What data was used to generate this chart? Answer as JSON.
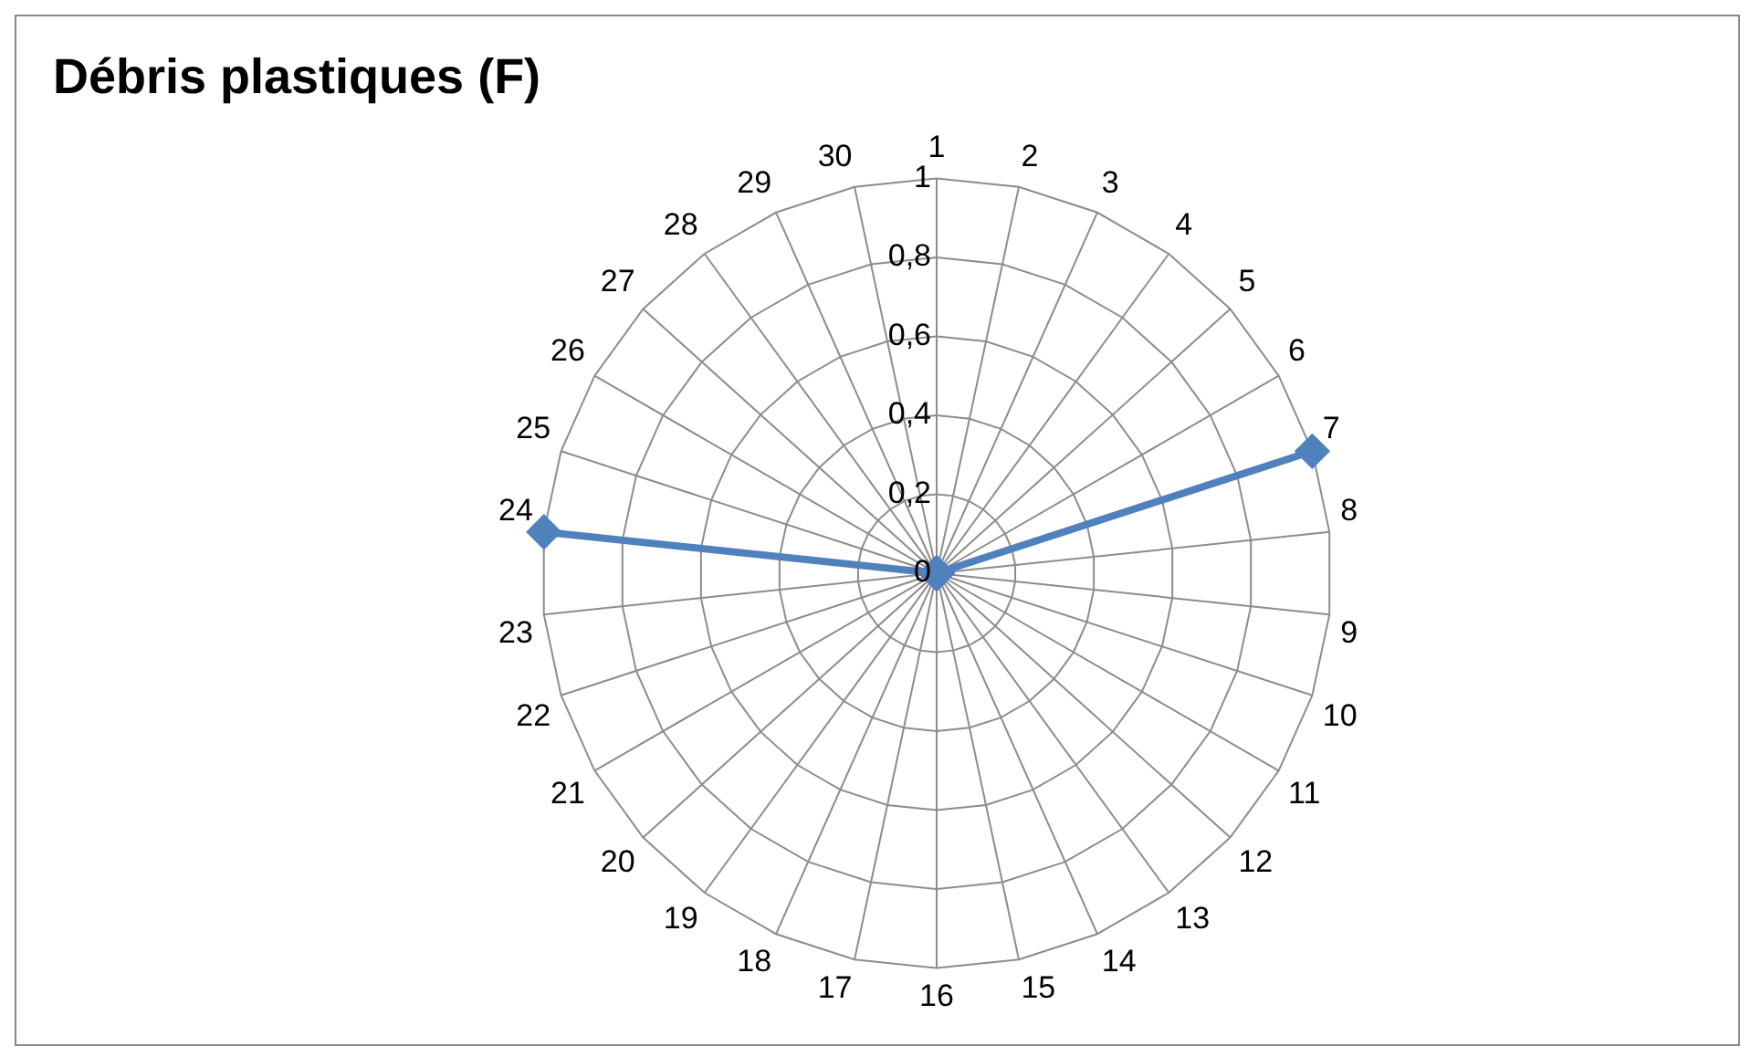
{
  "chart_data": {
    "type": "radar",
    "title": "Débris plastiques (F)",
    "categories": [
      "1",
      "2",
      "3",
      "4",
      "5",
      "6",
      "7",
      "8",
      "9",
      "10",
      "11",
      "12",
      "13",
      "14",
      "15",
      "16",
      "17",
      "18",
      "19",
      "20",
      "21",
      "22",
      "23",
      "24",
      "25",
      "26",
      "27",
      "28",
      "29",
      "30"
    ],
    "series": [
      {
        "color": "#4f81bd",
        "values": [
          0,
          0,
          0,
          0,
          0,
          0,
          1,
          0,
          0,
          0,
          0,
          0,
          0,
          0,
          0,
          0,
          0,
          0,
          0,
          0,
          0,
          0,
          0,
          1,
          0,
          0,
          0,
          0,
          0,
          0
        ]
      }
    ],
    "ylim": [
      0,
      1
    ],
    "yticks": [
      {
        "value": 0,
        "label": "0"
      },
      {
        "value": 0.2,
        "label": "0,2"
      },
      {
        "value": 0.4,
        "label": "0,4"
      },
      {
        "value": 0.6,
        "label": "0,6"
      },
      {
        "value": 0.8,
        "label": "0,8"
      },
      {
        "value": 1,
        "label": "1"
      }
    ],
    "grid": true,
    "legend": false,
    "marker": "diamond",
    "line_style": "solid"
  }
}
